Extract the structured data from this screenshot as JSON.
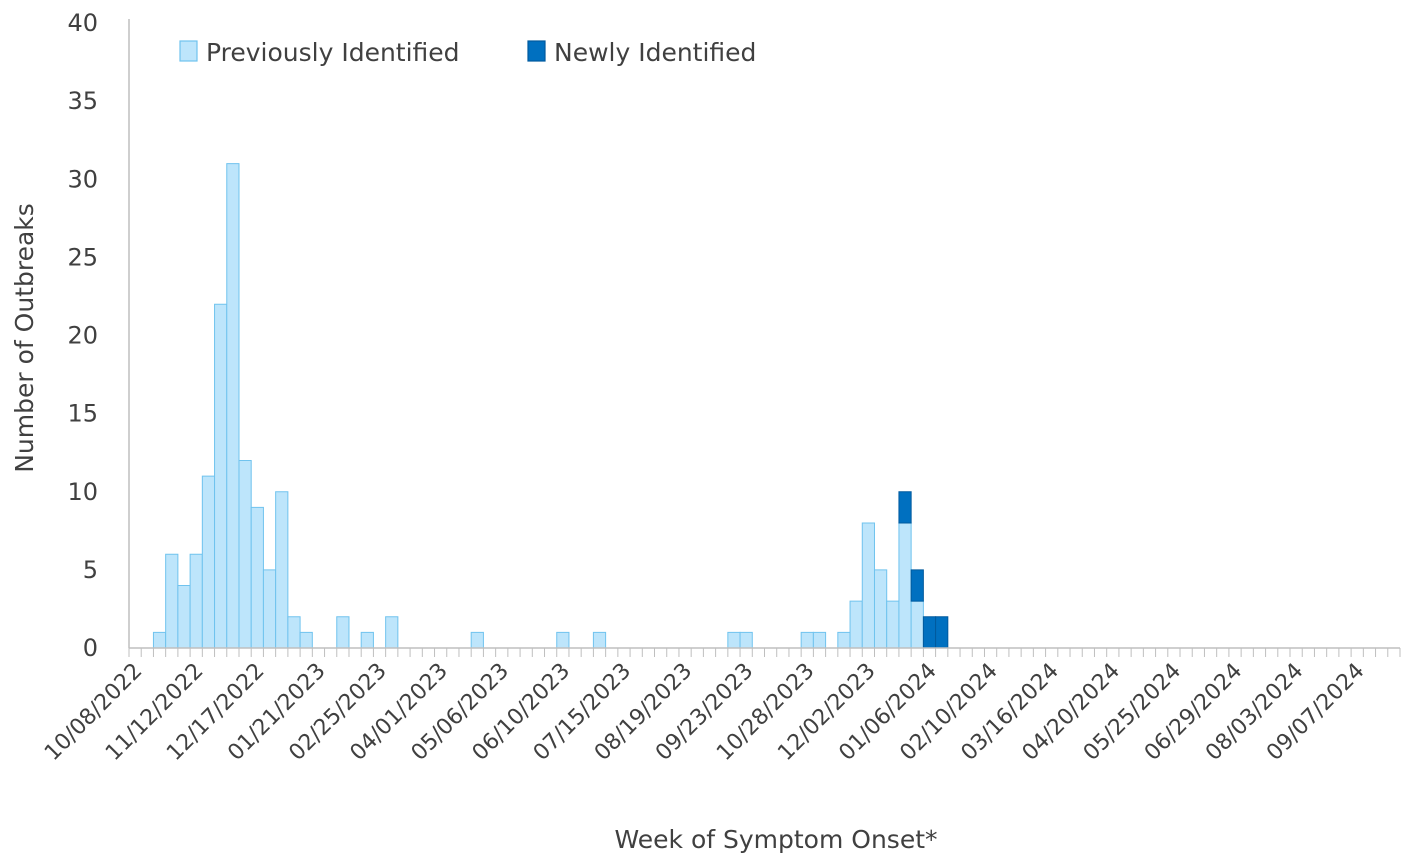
{
  "chart_data": {
    "type": "bar",
    "stacked": true,
    "title": "",
    "xlabel": "Week of Symptom Onset*",
    "ylabel": "Number of Outbreaks",
    "ylim": [
      0,
      40
    ],
    "yticks": [
      0,
      5,
      10,
      15,
      20,
      25,
      30,
      35,
      40
    ],
    "grid": false,
    "legend_position": "top-left",
    "start_week": "10/08/2022",
    "end_week": "09/28/2024",
    "x_tick_labels": [
      "10/08/2022",
      "11/12/2022",
      "12/17/2022",
      "01/21/2023",
      "02/25/2023",
      "04/01/2023",
      "05/06/2023",
      "06/10/2023",
      "07/15/2023",
      "08/19/2023",
      "09/23/2023",
      "10/28/2023",
      "12/02/2023",
      "01/06/2024",
      "02/10/2024",
      "03/16/2024",
      "04/20/2024",
      "05/25/2024",
      "06/29/2024",
      "08/03/2024",
      "09/07/2024"
    ],
    "series": [
      {
        "name": "Previously Identified",
        "color": "#bde5fb",
        "edge_color": "#70c3ee",
        "points": [
          {
            "x": "10/22/2022",
            "y": 1
          },
          {
            "x": "10/29/2022",
            "y": 6
          },
          {
            "x": "11/05/2022",
            "y": 4
          },
          {
            "x": "11/12/2022",
            "y": 6
          },
          {
            "x": "11/19/2022",
            "y": 11
          },
          {
            "x": "11/26/2022",
            "y": 22
          },
          {
            "x": "12/03/2022",
            "y": 31
          },
          {
            "x": "12/10/2022",
            "y": 12
          },
          {
            "x": "12/17/2022",
            "y": 9
          },
          {
            "x": "12/24/2022",
            "y": 5
          },
          {
            "x": "12/31/2022",
            "y": 10
          },
          {
            "x": "01/07/2023",
            "y": 2
          },
          {
            "x": "01/14/2023",
            "y": 1
          },
          {
            "x": "02/04/2023",
            "y": 2
          },
          {
            "x": "02/18/2023",
            "y": 1
          },
          {
            "x": "03/04/2023",
            "y": 2
          },
          {
            "x": "04/22/2023",
            "y": 1
          },
          {
            "x": "06/10/2023",
            "y": 1
          },
          {
            "x": "07/01/2023",
            "y": 1
          },
          {
            "x": "09/16/2023",
            "y": 1
          },
          {
            "x": "09/23/2023",
            "y": 1
          },
          {
            "x": "10/28/2023",
            "y": 1
          },
          {
            "x": "11/04/2023",
            "y": 1
          },
          {
            "x": "11/18/2023",
            "y": 1
          },
          {
            "x": "11/25/2023",
            "y": 3
          },
          {
            "x": "12/02/2023",
            "y": 8
          },
          {
            "x": "12/09/2023",
            "y": 5
          },
          {
            "x": "12/16/2023",
            "y": 3
          },
          {
            "x": "12/23/2023",
            "y": 8
          },
          {
            "x": "12/30/2023",
            "y": 3
          }
        ]
      },
      {
        "name": "Newly Identified",
        "color": "#0070c0",
        "edge_color": "#005a9e",
        "points": [
          {
            "x": "12/23/2023",
            "y": 2
          },
          {
            "x": "12/30/2023",
            "y": 2
          },
          {
            "x": "01/06/2024",
            "y": 2
          },
          {
            "x": "01/13/2024",
            "y": 2
          }
        ]
      }
    ]
  }
}
